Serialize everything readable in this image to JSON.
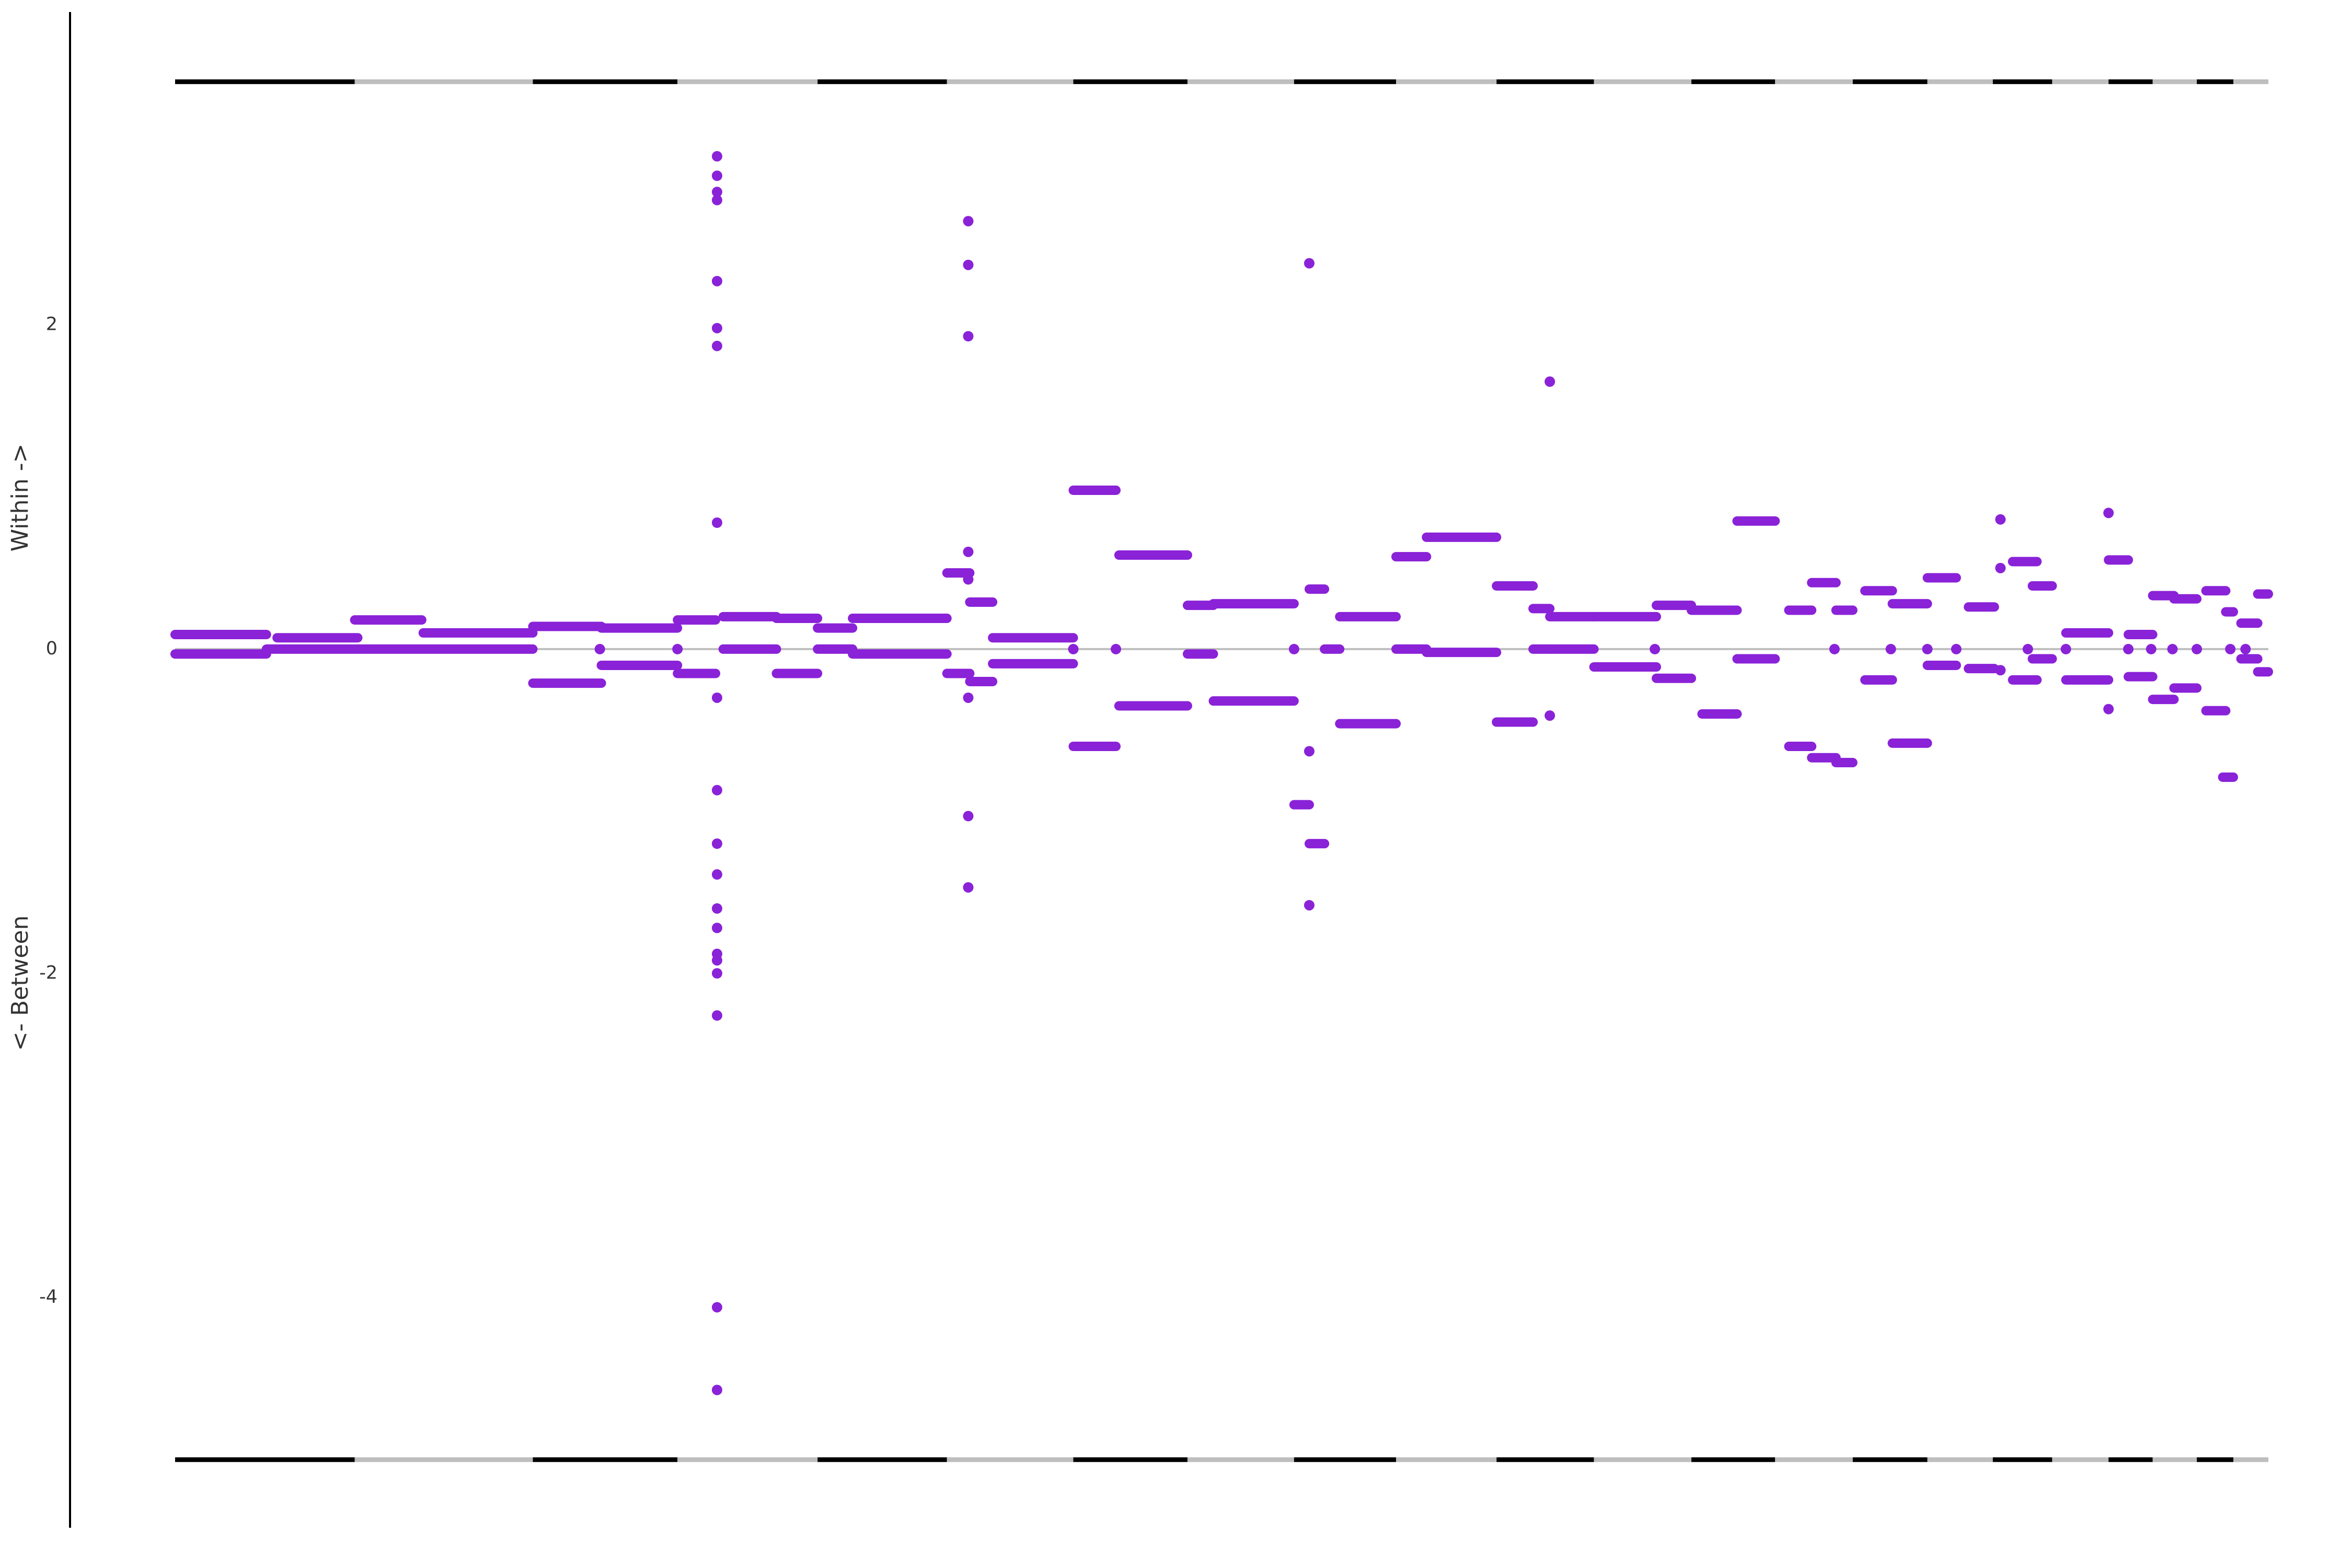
{
  "chart_data": {
    "type": "segments",
    "y_label_top": "Within ->",
    "y_label_bottom": "<- Between",
    "xlim": [
      0,
      1375
    ],
    "ylim": [
      -5.42,
      3.93
    ],
    "yticks": [
      -4,
      -2,
      0,
      2
    ],
    "reference_line": 0,
    "color": "#8a22d8",
    "group_bounds": [
      0,
      118,
      235,
      330,
      422,
      507,
      590,
      665,
      735,
      802,
      868,
      932,
      996,
      1051,
      1102,
      1151,
      1194,
      1233,
      1270,
      1299,
      1328,
      1352,
      1375
    ],
    "group_colors": [
      "#000000",
      "#bebebe"
    ],
    "band_levels": [
      3.5,
      -5.0
    ],
    "segments": [
      [
        0,
        60,
        0.09
      ],
      [
        0,
        60,
        -0.03
      ],
      [
        67,
        120,
        0.07
      ],
      [
        60,
        120,
        0
      ],
      [
        118,
        162,
        0.18
      ],
      [
        120,
        235,
        0
      ],
      [
        163,
        235,
        0.1
      ],
      [
        235,
        280,
        0.14
      ],
      [
        235,
        280,
        -0.21
      ],
      [
        280,
        330,
        0.13
      ],
      [
        280,
        330,
        -0.1
      ],
      [
        330,
        355,
        0.18
      ],
      [
        330,
        355,
        -0.15
      ],
      [
        360,
        395,
        0.2
      ],
      [
        360,
        395,
        0
      ],
      [
        395,
        422,
        0.19
      ],
      [
        395,
        422,
        -0.15
      ],
      [
        422,
        445,
        0.13
      ],
      [
        422,
        445,
        0
      ],
      [
        445,
        507,
        0.19
      ],
      [
        445,
        507,
        -0.03
      ],
      [
        507,
        522,
        0.47
      ],
      [
        507,
        522,
        -0.15
      ],
      [
        522,
        537,
        0.29
      ],
      [
        522,
        537,
        -0.2
      ],
      [
        537,
        590,
        0.07
      ],
      [
        537,
        590,
        -0.09
      ],
      [
        590,
        618,
        0.98
      ],
      [
        590,
        618,
        -0.6
      ],
      [
        620,
        665,
        0.58
      ],
      [
        620,
        665,
        -0.35
      ],
      [
        665,
        682,
        0.27
      ],
      [
        665,
        682,
        -0.03
      ],
      [
        682,
        735,
        0.28
      ],
      [
        682,
        735,
        -0.32
      ],
      [
        735,
        745,
        -0.96
      ],
      [
        745,
        755,
        0.37
      ],
      [
        745,
        755,
        -1.2
      ],
      [
        755,
        765,
        0
      ],
      [
        765,
        802,
        0.2
      ],
      [
        765,
        802,
        -0.46
      ],
      [
        802,
        822,
        0.57
      ],
      [
        802,
        822,
        0
      ],
      [
        822,
        868,
        0.69
      ],
      [
        822,
        868,
        -0.02
      ],
      [
        868,
        892,
        0.39
      ],
      [
        868,
        892,
        -0.45
      ],
      [
        892,
        903,
        0.25
      ],
      [
        892,
        903,
        0
      ],
      [
        903,
        932,
        0.2
      ],
      [
        903,
        932,
        0
      ],
      [
        932,
        973,
        0.2
      ],
      [
        932,
        973,
        -0.11
      ],
      [
        973,
        996,
        0.27
      ],
      [
        973,
        996,
        -0.18
      ],
      [
        996,
        1026,
        0.24
      ],
      [
        1003,
        1026,
        -0.4
      ],
      [
        1026,
        1051,
        0.79
      ],
      [
        1026,
        1051,
        -0.06
      ],
      [
        1060,
        1075,
        0.24
      ],
      [
        1060,
        1075,
        -0.6
      ],
      [
        1075,
        1091,
        0.41
      ],
      [
        1075,
        1091,
        -0.67
      ],
      [
        1091,
        1102,
        0.24
      ],
      [
        1091,
        1102,
        -0.7
      ],
      [
        1110,
        1128,
        0.36
      ],
      [
        1110,
        1128,
        -0.19
      ],
      [
        1128,
        1151,
        0.28
      ],
      [
        1128,
        1151,
        -0.58
      ],
      [
        1151,
        1170,
        0.44
      ],
      [
        1151,
        1170,
        -0.1
      ],
      [
        1178,
        1195,
        0.26
      ],
      [
        1178,
        1195,
        -0.12
      ],
      [
        1207,
        1223,
        0.54
      ],
      [
        1207,
        1223,
        -0.19
      ],
      [
        1220,
        1233,
        0.39
      ],
      [
        1220,
        1233,
        -0.06
      ],
      [
        1242,
        1270,
        0.1
      ],
      [
        1242,
        1270,
        -0.19
      ],
      [
        1270,
        1283,
        0.55
      ],
      [
        1283,
        1299,
        0.09
      ],
      [
        1283,
        1299,
        -0.17
      ],
      [
        1299,
        1313,
        0.33
      ],
      [
        1299,
        1313,
        -0.31
      ],
      [
        1313,
        1328,
        0.31
      ],
      [
        1313,
        1328,
        -0.24
      ],
      [
        1334,
        1347,
        0.36
      ],
      [
        1334,
        1347,
        -0.38
      ],
      [
        1347,
        1352,
        0.23
      ],
      [
        1345,
        1352,
        -0.79
      ],
      [
        1357,
        1368,
        0.16
      ],
      [
        1357,
        1368,
        -0.06
      ],
      [
        1368,
        1375,
        0.34
      ],
      [
        1368,
        1375,
        -0.14
      ]
    ],
    "points": [
      [
        356,
        3.04
      ],
      [
        356,
        2.92
      ],
      [
        356,
        2.82
      ],
      [
        356,
        2.77
      ],
      [
        356,
        2.27
      ],
      [
        356,
        1.98
      ],
      [
        356,
        1.87
      ],
      [
        356,
        0.78
      ],
      [
        356,
        -0.3
      ],
      [
        356,
        -0.87
      ],
      [
        356,
        -1.2
      ],
      [
        356,
        -1.39
      ],
      [
        356,
        -1.6
      ],
      [
        356,
        -1.72
      ],
      [
        356,
        -1.88
      ],
      [
        356,
        -1.92
      ],
      [
        356,
        -2.0
      ],
      [
        356,
        -2.26
      ],
      [
        356,
        -4.06
      ],
      [
        356,
        -4.57
      ],
      [
        521,
        2.64
      ],
      [
        521,
        2.37
      ],
      [
        521,
        1.93
      ],
      [
        521,
        0.6
      ],
      [
        521,
        0.43
      ],
      [
        521,
        -0.3
      ],
      [
        521,
        -1.03
      ],
      [
        521,
        -1.47
      ],
      [
        745,
        2.38
      ],
      [
        745,
        -0.63
      ],
      [
        745,
        -1.58
      ],
      [
        903,
        1.65
      ],
      [
        903,
        -0.41
      ],
      [
        1199,
        0.8
      ],
      [
        1199,
        0.5
      ],
      [
        1199,
        -0.13
      ],
      [
        1270,
        0.84
      ],
      [
        1270,
        -0.37
      ],
      [
        279,
        0
      ],
      [
        330,
        0
      ],
      [
        590,
        0
      ],
      [
        618,
        0
      ],
      [
        735,
        0
      ],
      [
        972,
        0
      ],
      [
        1090,
        0
      ],
      [
        1127,
        0
      ],
      [
        1151,
        0
      ],
      [
        1170,
        0
      ],
      [
        1217,
        0
      ],
      [
        1242,
        0
      ],
      [
        1283,
        0
      ],
      [
        1298,
        0
      ],
      [
        1312,
        0
      ],
      [
        1328,
        0
      ],
      [
        1350,
        0
      ],
      [
        1360,
        0
      ]
    ]
  }
}
